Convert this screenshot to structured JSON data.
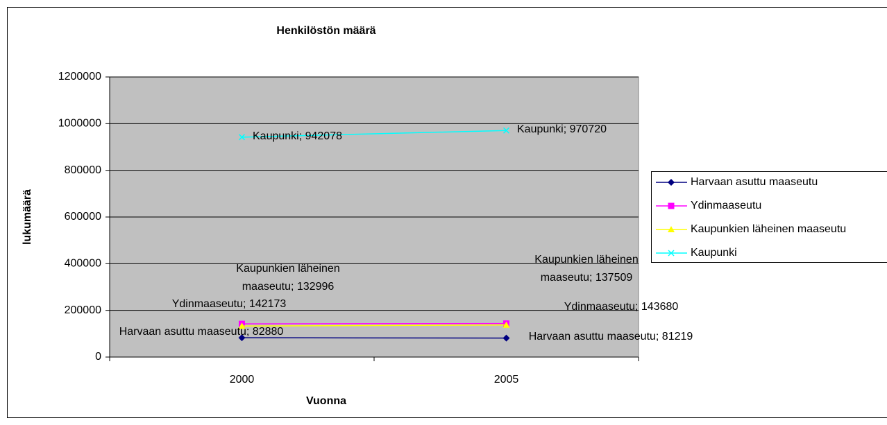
{
  "chart_data": {
    "type": "line",
    "title": "Henkilöstön määrä",
    "x_label": "Vuonna",
    "y_label": "lukumäärä",
    "categories": [
      "2000",
      "2005"
    ],
    "series": [
      {
        "name": "Harvaan asuttu maaseutu",
        "color": "#000080",
        "marker": "diamond",
        "values": [
          82880,
          81219
        ],
        "value_labels": [
          "Harvaan asuttu maaseutu; 82880",
          "Harvaan asuttu maaseutu; 81219"
        ]
      },
      {
        "name": "Ydinmaaseutu",
        "color": "#ff00ff",
        "marker": "square",
        "values": [
          142173,
          143680
        ],
        "value_labels": [
          "Ydinmaaseutu; 142173",
          "Ydinmaaseutu; 143680"
        ]
      },
      {
        "name": "Kaupunkien läheinen maaseutu",
        "color": "#ffff00",
        "marker": "triangle",
        "values": [
          132996,
          137509
        ],
        "value_labels": [
          "Kaupunkien läheinen maaseutu; 132996",
          "Kaupunkien läheinen maaseutu; 137509"
        ]
      },
      {
        "name": "Kaupunki",
        "color": "#00ffff",
        "marker": "x",
        "values": [
          942078,
          970720
        ],
        "value_labels": [
          "Kaupunki; 942078",
          "Kaupunki; 970720"
        ]
      }
    ],
    "ylim": [
      0,
      1200000
    ],
    "yticks": [
      0,
      200000,
      400000,
      600000,
      800000,
      1000000,
      1200000
    ],
    "grid": true,
    "legend": "right"
  }
}
